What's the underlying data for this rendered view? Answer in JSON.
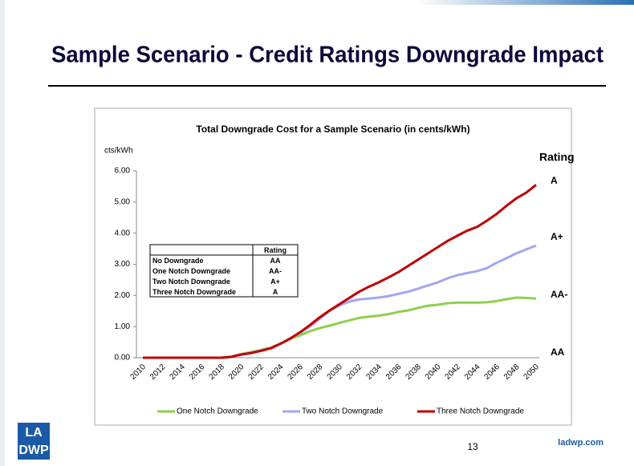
{
  "slide": {
    "title": "Sample Scenario - Credit Ratings Downgrade Impact",
    "page_number": "13",
    "footer_url": "ladwp.com",
    "logo": [
      "LA",
      "DWP"
    ]
  },
  "chart_data": {
    "type": "line",
    "title": "Total Downgrade Cost for a Sample Scenario (in cents/kWh)",
    "y_label": "cts/kWh",
    "categories": [
      "2010",
      null,
      "2012",
      null,
      "2014",
      null,
      "2016",
      null,
      "2018",
      null,
      "2020",
      null,
      "2022",
      null,
      "2024",
      null,
      "2026",
      null,
      "2028",
      null,
      "2030",
      null,
      "2032",
      null,
      "2034",
      null,
      "2036",
      null,
      "2038",
      null,
      "2040",
      null,
      "2042",
      null,
      "2044",
      null,
      "2046",
      null,
      "2048",
      null,
      "2050"
    ],
    "ylim": [
      0,
      6
    ],
    "yticks": [
      {
        "value": 0,
        "label": "0.00"
      },
      {
        "value": 1,
        "label": "1.00"
      },
      {
        "value": 2,
        "label": "2.00"
      },
      {
        "value": 3,
        "label": "3.00"
      },
      {
        "value": 4,
        "label": "4.00"
      },
      {
        "value": 5,
        "label": "5.00"
      },
      {
        "value": 6,
        "label": "6.00"
      }
    ],
    "grid": false,
    "legend": "bottom",
    "series": [
      {
        "name": "One Notch Downgrade",
        "color": "#8fcf4f",
        "values": [
          0,
          0,
          0,
          0,
          0,
          0,
          0,
          0,
          0,
          0.03,
          0.12,
          0.18,
          0.25,
          0.33,
          0.45,
          0.6,
          0.72,
          0.85,
          0.95,
          1.03,
          1.12,
          1.2,
          1.28,
          1.32,
          1.35,
          1.4,
          1.47,
          1.52,
          1.6,
          1.67,
          1.7,
          1.75,
          1.77,
          1.77,
          1.77,
          1.78,
          1.82,
          1.88,
          1.93,
          1.92,
          1.9
        ]
      },
      {
        "name": "Two Notch Downgrade",
        "color": "#a3a6f0",
        "values": [
          0,
          0,
          0,
          0,
          0,
          0,
          0,
          0,
          0,
          0.03,
          0.11,
          0.16,
          0.23,
          0.31,
          0.45,
          0.62,
          0.8,
          1.0,
          1.25,
          1.5,
          1.68,
          1.8,
          1.87,
          1.9,
          1.93,
          1.98,
          2.05,
          2.12,
          2.22,
          2.32,
          2.42,
          2.55,
          2.65,
          2.72,
          2.78,
          2.88,
          3.05,
          3.2,
          3.35,
          3.48,
          3.6
        ]
      },
      {
        "name": "Three Notch Downgrade",
        "color": "#c00000",
        "values": [
          0,
          0,
          0,
          0,
          0,
          0,
          0,
          0,
          0,
          0.03,
          0.1,
          0.15,
          0.22,
          0.3,
          0.45,
          0.62,
          0.82,
          1.05,
          1.3,
          1.52,
          1.72,
          1.92,
          2.12,
          2.28,
          2.42,
          2.58,
          2.75,
          2.95,
          3.15,
          3.35,
          3.55,
          3.75,
          3.92,
          4.08,
          4.2,
          4.4,
          4.62,
          4.88,
          5.12,
          5.3,
          5.55
        ]
      }
    ],
    "rating_title": "Rating",
    "rating_labels": [
      "A",
      "A+",
      "AA-",
      "AA"
    ],
    "table": {
      "header": "Rating",
      "rows": [
        [
          "No Downgrade",
          "AA"
        ],
        [
          "One Notch Downgrade",
          "AA-"
        ],
        [
          "Two Notch Downgrade",
          "A+"
        ],
        [
          "Three Notch Downgrade",
          "A"
        ]
      ]
    }
  }
}
